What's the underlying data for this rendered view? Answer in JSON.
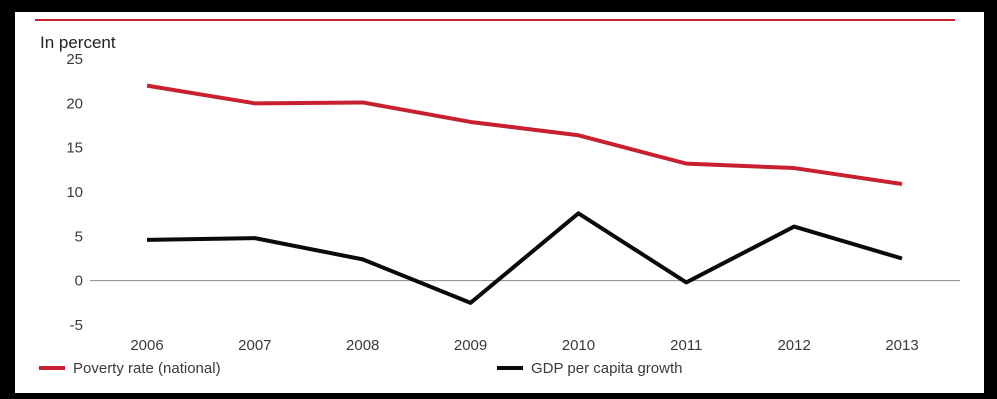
{
  "colors": {
    "poverty": "#c8202f",
    "gdp": "#0a0a0a",
    "topline": "#c8202f",
    "zeroline": "#8a8a8a"
  },
  "chart_data": {
    "type": "line",
    "ylabel": "In percent",
    "x": [
      "2006",
      "2007",
      "2008",
      "2009",
      "2010",
      "2011",
      "2012",
      "2013"
    ],
    "ylim": [
      -5,
      25
    ],
    "yticks": [
      25,
      20,
      15,
      10,
      5,
      0,
      -5
    ],
    "grid": false,
    "legend_position": "bottom",
    "series": [
      {
        "name": "Poverty rate (national)",
        "color_key": "poverty",
        "values": [
          22.0,
          20.0,
          20.1,
          17.9,
          16.4,
          13.2,
          12.7,
          10.9
        ]
      },
      {
        "name": "GDP per capita growth",
        "color_key": "gdp",
        "values": [
          4.6,
          4.8,
          2.4,
          -2.5,
          7.6,
          -0.2,
          6.1,
          2.5
        ]
      }
    ]
  }
}
